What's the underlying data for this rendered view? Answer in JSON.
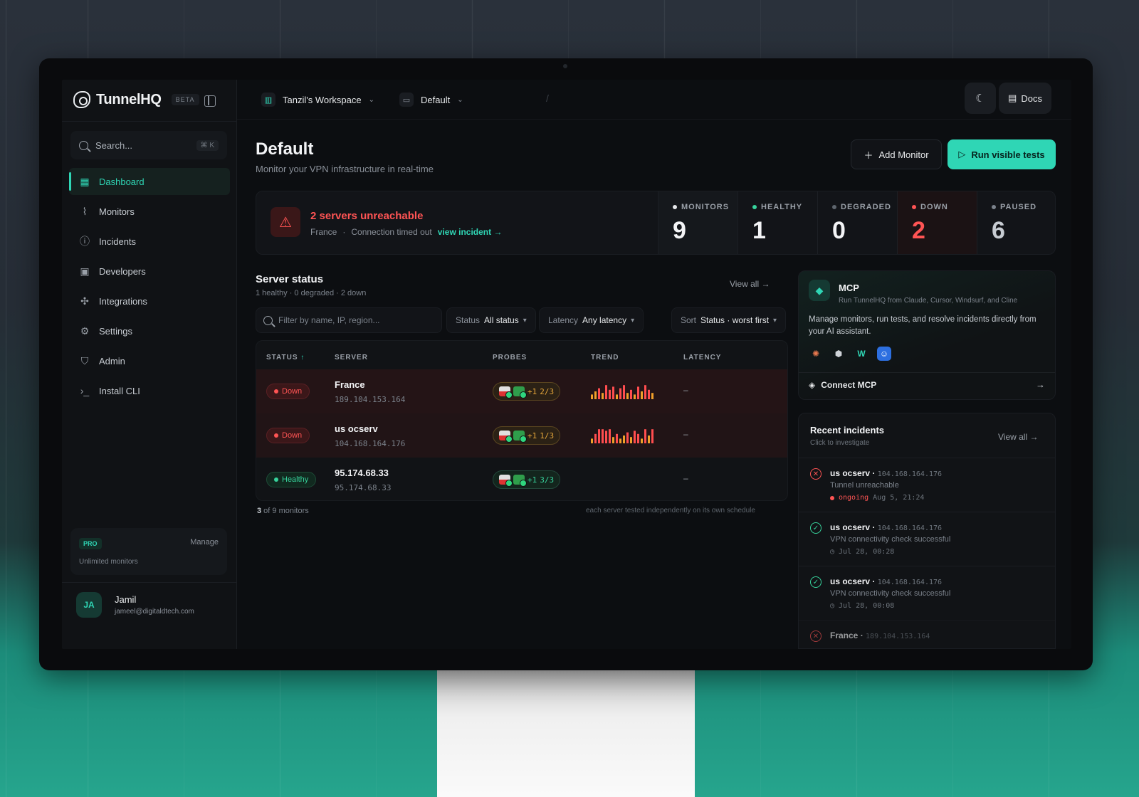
{
  "app": {
    "name": "TunnelHQ",
    "badge": "BETA"
  },
  "search": {
    "placeholder": "Search...",
    "shortcut": "⌘ K"
  },
  "nav": [
    {
      "label": "Dashboard",
      "icon": "dashboard-icon",
      "active": true
    },
    {
      "label": "Monitors",
      "icon": "activity-icon"
    },
    {
      "label": "Incidents",
      "icon": "alert-circle-icon"
    },
    {
      "label": "Developers",
      "icon": "code-icon"
    },
    {
      "label": "Integrations",
      "icon": "integrations-icon"
    },
    {
      "label": "Settings",
      "icon": "gear-icon"
    },
    {
      "label": "Admin",
      "icon": "shield-icon"
    },
    {
      "label": "Install CLI",
      "icon": "terminal-icon"
    }
  ],
  "plan": {
    "badge": "PRO",
    "manage": "Manage",
    "sub": "Unlimited monitors"
  },
  "user": {
    "initials": "JA",
    "name": "Jamil",
    "email": "jameel@digitaldtech.com"
  },
  "topbar": {
    "workspace": "Tanzil's Workspace",
    "project": "Default",
    "docs": "Docs"
  },
  "page": {
    "title": "Default",
    "subtitle": "Monitor your VPN infrastructure in real-time",
    "add_monitor": "Add Monitor",
    "run_tests": "Run visible tests"
  },
  "alert": {
    "title": "2 servers unreachable",
    "location": "France",
    "reason": "Connection timed out",
    "link": "view incident"
  },
  "stats": [
    {
      "label": "MONITORS",
      "value": "9",
      "color": "#e6e8ea"
    },
    {
      "label": "HEALTHY",
      "value": "1",
      "color": "#37d39c"
    },
    {
      "label": "DEGRADED",
      "value": "0",
      "color": "#5e656d"
    },
    {
      "label": "DOWN",
      "value": "2",
      "color": "#ff5454"
    },
    {
      "label": "PAUSED",
      "value": "6",
      "color": "#7b828b"
    }
  ],
  "server_status": {
    "title": "Server status",
    "summary": "1 healthy · 0 degraded · 2 down",
    "view_all": "View all",
    "filter_placeholder": "Filter by name, IP, region...",
    "status_filter": {
      "label": "Status",
      "value": "All status"
    },
    "latency_filter": {
      "label": "Latency",
      "value": "Any latency"
    },
    "sort": {
      "label": "Sort",
      "value": "Status · worst first"
    },
    "columns": [
      "STATUS",
      "SERVER",
      "PROBES",
      "TREND",
      "LATENCY"
    ],
    "rows": [
      {
        "status": "Down",
        "name": "France",
        "ip": "189.104.153.164",
        "probes_extra": "+1",
        "probes": "2/3",
        "latency": "–",
        "trend": [
          0.3,
          0.5,
          0.7,
          0.4,
          0.9,
          0.6,
          0.8,
          0.3,
          0.7,
          0.9,
          0.4,
          0.6,
          0.3,
          0.8,
          0.5,
          0.9,
          0.6,
          0.4
        ]
      },
      {
        "status": "Down",
        "name": "us ocserv",
        "ip": "104.168.164.176",
        "probes_extra": "+1",
        "probes": "1/3",
        "latency": "–",
        "trend": [
          0.3,
          0.6,
          0.9,
          0.9,
          0.8,
          0.9,
          0.4,
          0.6,
          0.3,
          0.5,
          0.7,
          0.4,
          0.8,
          0.6,
          0.3,
          0.9,
          0.5,
          0.9
        ]
      },
      {
        "status": "Healthy",
        "name": "95.174.68.33",
        "ip": "95.174.68.33",
        "probes_extra": "+1",
        "probes": "3/3",
        "latency": "–",
        "trend": []
      }
    ],
    "footer_count": "3",
    "footer_rest": " of 9 monitors",
    "footer_note": "each server tested independently on its own schedule"
  },
  "mcp": {
    "title": "MCP",
    "subtitle": "Run TunnelHQ from Claude, Cursor, Windsurf, and Cline",
    "description": "Manage monitors, run tests, and resolve incidents directly from your AI assistant.",
    "connect": "Connect MCP"
  },
  "incidents": {
    "title": "Recent incidents",
    "subtitle": "Click to investigate",
    "view_all": "View all",
    "items": [
      {
        "name": "us ocserv",
        "ip": "104.168.164.176",
        "message": "Tunnel unreachable",
        "state": "ongoing",
        "time": "Aug 5, 21:24",
        "kind": "error"
      },
      {
        "name": "us ocserv",
        "ip": "104.168.164.176",
        "message": "VPN connectivity check successful",
        "time": "Jul 28, 00:28",
        "kind": "ok"
      },
      {
        "name": "us ocserv",
        "ip": "104.168.164.176",
        "message": "VPN connectivity check successful",
        "time": "Jul 28, 00:08",
        "kind": "ok"
      },
      {
        "name": "France",
        "ip": "189.104.153.164",
        "message": "",
        "time": "",
        "kind": "error"
      }
    ]
  }
}
